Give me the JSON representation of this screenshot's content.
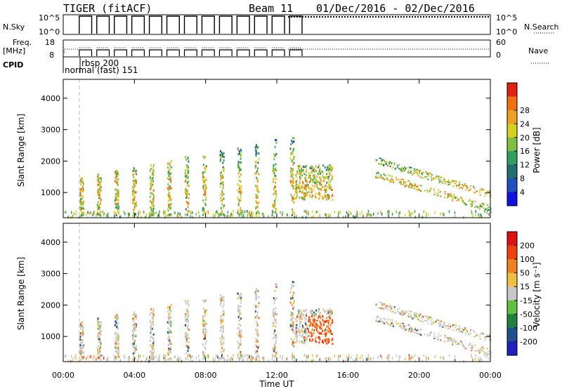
{
  "header": {
    "title": "TIGER (fitACF)",
    "beam": "Beam 11",
    "date_range": "01/Dec/2016 - 02/Dec/2016"
  },
  "top_panels": {
    "nsky": {
      "label": "N.Sky",
      "tick_top": "10^5",
      "tick_bottom": "10^0",
      "right_label": "N.Search",
      "right_tick_top": "10^5",
      "right_tick_bottom": "10^0"
    },
    "freq": {
      "label_line1": "Freq.",
      "label_line2": "[MHz]",
      "tick_top": "18",
      "tick_bottom": "8",
      "right_label": "Nave",
      "right_tick_top": "60",
      "right_tick_bottom": "0"
    },
    "cpid": {
      "label": "CPID",
      "entry1": "rbsp 200",
      "entry2": "normal (fast) 151"
    }
  },
  "chart_data": [
    {
      "type": "heatmap",
      "panel": "power",
      "ylabel": "Slant Range [km]",
      "yticks": [
        "1000",
        "2000",
        "3000",
        "4000"
      ],
      "ylim": [
        200,
        4600
      ],
      "xlim": [
        0,
        24
      ],
      "colorbar": {
        "label": "Power [dB]",
        "ticks": [
          "4",
          "8",
          "12",
          "16",
          "20",
          "24",
          "28"
        ],
        "colors": [
          "#1010e0",
          "#2050c0",
          "#207070",
          "#30a060",
          "#80c040",
          "#d8d020",
          "#f0a020",
          "#f07010",
          "#e02010"
        ]
      },
      "features": [
        {
          "t_start": 0.4,
          "t_end": 12.6,
          "r_min": 300,
          "r_max": 3000,
          "note": "scan stripes, ~1h cadence"
        },
        {
          "t_start": 13.0,
          "t_end": 15.0,
          "r_min": 800,
          "r_max": 2000
        },
        {
          "t_start": 18.0,
          "t_end": 24.0,
          "r_min": 700,
          "r_max": 2000
        }
      ]
    },
    {
      "type": "heatmap",
      "panel": "velocity",
      "ylabel": "Slant Range [km]",
      "yticks": [
        "1000",
        "2000",
        "3000",
        "4000"
      ],
      "ylim": [
        200,
        4600
      ],
      "xlim": [
        0,
        24
      ],
      "xticks": [
        "00:00",
        "04:00",
        "08:00",
        "12:00",
        "16:00",
        "20:00",
        "00:00"
      ],
      "xlabel": "Time UT",
      "colorbar": {
        "label": "Velocity [m s⁻¹]",
        "ticks": [
          "200",
          "100",
          "50",
          "15",
          "-15",
          "-50",
          "-100",
          "-200"
        ],
        "colors": [
          "#2020c0",
          "#205090",
          "#208040",
          "#60c040",
          "#c8c8c8",
          "#f0c040",
          "#f08020",
          "#f04010",
          "#e01010"
        ]
      }
    }
  ]
}
